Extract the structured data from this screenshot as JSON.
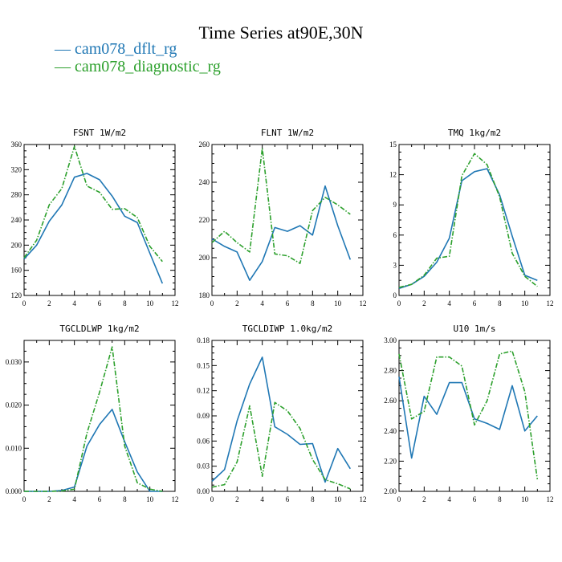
{
  "figure": {
    "title": "Time Series at90E,30N"
  },
  "legend": [
    {
      "label": "cam078_dflt_rg",
      "color": "#1f77b4",
      "dash": "solid"
    },
    {
      "label": "cam078_diagnostic_rg",
      "color": "#2ca02c",
      "dash": "dashdot"
    }
  ],
  "chart_data": [
    {
      "type": "line",
      "title": "FSNT   1W/m2",
      "xlim": [
        0,
        12
      ],
      "xticks": [
        0,
        2,
        4,
        6,
        8,
        10,
        12
      ],
      "ylim": [
        120,
        360
      ],
      "yticks": [
        120,
        160,
        200,
        240,
        280,
        320,
        360
      ],
      "ytick_labels": [
        "120",
        "160",
        "200",
        "240",
        "280",
        "320",
        "360"
      ],
      "x": [
        0,
        1,
        2,
        3,
        4,
        5,
        6,
        7,
        8,
        9,
        10,
        11
      ],
      "series": [
        {
          "name": "cam078_dflt_rg",
          "values": [
            178,
            200,
            238,
            264,
            308,
            314,
            304,
            278,
            246,
            236,
            187,
            139
          ]
        },
        {
          "name": "cam078_diagnostic_rg",
          "values": [
            180,
            208,
            264,
            290,
            357,
            294,
            284,
            257,
            258,
            244,
            198,
            174
          ]
        }
      ]
    },
    {
      "type": "line",
      "title": "FLNT   1W/m2",
      "xlim": [
        0,
        12
      ],
      "xticks": [
        0,
        2,
        4,
        6,
        8,
        10,
        12
      ],
      "ylim": [
        180,
        260
      ],
      "yticks": [
        180,
        200,
        220,
        240,
        260
      ],
      "ytick_labels": [
        "180",
        "200",
        "220",
        "240",
        "260"
      ],
      "x": [
        0,
        1,
        2,
        3,
        4,
        5,
        6,
        7,
        8,
        9,
        10,
        11
      ],
      "series": [
        {
          "name": "cam078_dflt_rg",
          "values": [
            210,
            206,
            203,
            188,
            198,
            216,
            214,
            217,
            212,
            238,
            217,
            199
          ]
        },
        {
          "name": "cam078_diagnostic_rg",
          "values": [
            208,
            214,
            208,
            203,
            258,
            202,
            201,
            197,
            225,
            232,
            228,
            223
          ]
        }
      ]
    },
    {
      "type": "line",
      "title": "TMQ   1kg/m2",
      "xlim": [
        0,
        12
      ],
      "xticks": [
        0,
        2,
        4,
        6,
        8,
        10,
        12
      ],
      "ylim": [
        0,
        15
      ],
      "yticks": [
        0,
        3,
        6,
        9,
        12,
        15
      ],
      "ytick_labels": [
        "0",
        "3",
        "6",
        "9",
        "12",
        "15"
      ],
      "x": [
        0,
        1,
        2,
        3,
        4,
        5,
        6,
        7,
        8,
        9,
        10,
        11
      ],
      "series": [
        {
          "name": "cam078_dflt_rg",
          "values": [
            0.7,
            1.1,
            1.9,
            3.3,
            5.7,
            11.4,
            12.3,
            12.6,
            10.0,
            5.9,
            2.0,
            1.5
          ]
        },
        {
          "name": "cam078_diagnostic_rg",
          "values": [
            0.8,
            1.1,
            2.0,
            3.7,
            3.9,
            11.9,
            14.1,
            13.0,
            9.8,
            4.2,
            1.9,
            0.9
          ]
        }
      ]
    },
    {
      "type": "line",
      "title": "TGCLDLWP   1kg/m2",
      "xlim": [
        0,
        12
      ],
      "xticks": [
        0,
        2,
        4,
        6,
        8,
        10,
        12
      ],
      "ylim": [
        0,
        0.035
      ],
      "yticks": [
        0,
        0.01,
        0.02,
        0.03
      ],
      "ytick_labels": [
        "0.000",
        "0.010",
        "0.020",
        "0.030"
      ],
      "x": [
        0,
        1,
        2,
        3,
        4,
        5,
        6,
        7,
        8,
        9,
        10,
        11
      ],
      "series": [
        {
          "name": "cam078_dflt_rg",
          "values": [
            0.0,
            0.0,
            0.0,
            0.0002,
            0.001,
            0.0105,
            0.0155,
            0.019,
            0.0115,
            0.0045,
            0.0,
            0.0
          ]
        },
        {
          "name": "cam078_diagnostic_rg",
          "values": [
            0.0,
            0.0,
            0.0,
            0.0001,
            0.0005,
            0.0135,
            0.023,
            0.0335,
            0.0105,
            0.002,
            0.0005,
            0.0
          ]
        }
      ]
    },
    {
      "type": "line",
      "title": "TGCLDIWP   1.0kg/m2",
      "xlim": [
        0,
        12
      ],
      "xticks": [
        0,
        2,
        4,
        6,
        8,
        10,
        12
      ],
      "ylim": [
        0,
        0.18
      ],
      "yticks": [
        0,
        0.03,
        0.06,
        0.09,
        0.12,
        0.15,
        0.18
      ],
      "ytick_labels": [
        "0.00",
        "0.03",
        "0.06",
        "0.09",
        "0.12",
        "0.15",
        "0.18"
      ],
      "x": [
        0,
        1,
        2,
        3,
        4,
        5,
        6,
        7,
        8,
        9,
        10,
        11
      ],
      "series": [
        {
          "name": "cam078_dflt_rg",
          "values": [
            0.012,
            0.026,
            0.084,
            0.128,
            0.16,
            0.077,
            0.068,
            0.056,
            0.057,
            0.011,
            0.051,
            0.027
          ]
        },
        {
          "name": "cam078_diagnostic_rg",
          "values": [
            0.005,
            0.008,
            0.035,
            0.102,
            0.018,
            0.106,
            0.096,
            0.075,
            0.038,
            0.014,
            0.009,
            0.003
          ]
        }
      ]
    },
    {
      "type": "line",
      "title": "U10   1m/s",
      "xlim": [
        0,
        12
      ],
      "xticks": [
        0,
        2,
        4,
        6,
        8,
        10,
        12
      ],
      "ylim": [
        2.0,
        3.0
      ],
      "yticks": [
        2.0,
        2.2,
        2.4,
        2.6,
        2.8,
        3.0
      ],
      "ytick_labels": [
        "2.00",
        "2.20",
        "2.40",
        "2.60",
        "2.80",
        "3.00"
      ],
      "x": [
        0,
        1,
        2,
        3,
        4,
        5,
        6,
        7,
        8,
        9,
        10,
        11
      ],
      "series": [
        {
          "name": "cam078_dflt_rg",
          "values": [
            2.76,
            2.22,
            2.63,
            2.51,
            2.72,
            2.72,
            2.48,
            2.45,
            2.41,
            2.7,
            2.4,
            2.5
          ]
        },
        {
          "name": "cam078_diagnostic_rg",
          "values": [
            2.91,
            2.48,
            2.53,
            2.89,
            2.89,
            2.83,
            2.44,
            2.6,
            2.91,
            2.93,
            2.66,
            2.08
          ]
        }
      ]
    }
  ]
}
